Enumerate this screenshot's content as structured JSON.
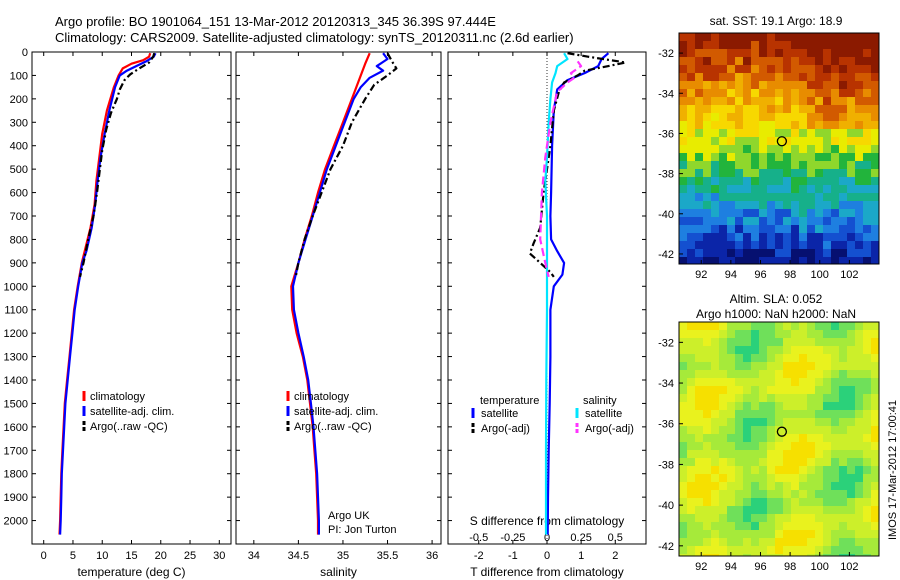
{
  "header": {
    "line1": "Argo profile: BO 1901064_151 13-Mar-2012 20120313_345 36.39S 97.444E",
    "line2": "Climatology: CARS2009. Satellite-adjusted climatology: synTS_20120311.nc (2.6d earlier)"
  },
  "sst_map": {
    "title": "sat. SST: 19.1 Argo: 18.9",
    "xticks": [
      "92",
      "94",
      "96",
      "98",
      "100",
      "102"
    ],
    "yticks": [
      "-32",
      "-34",
      "-36",
      "-38",
      "-40",
      "-42"
    ],
    "xlim": [
      90.5,
      104
    ],
    "ylim": [
      -42.5,
      -31
    ],
    "argo_lon": 97.444,
    "argo_lat": -36.39
  },
  "sla_map": {
    "title1": "Altim. SLA: 0.052",
    "title2": "Argo h1000: NaN h2000: NaN",
    "xticks": [
      "92",
      "94",
      "96",
      "98",
      "100",
      "102"
    ],
    "yticks": [
      "-32",
      "-34",
      "-36",
      "-38",
      "-40",
      "-42"
    ],
    "xlim": [
      90.5,
      104
    ],
    "ylim": [
      -42.5,
      -31
    ],
    "argo_lon": 97.444,
    "argo_lat": -36.39
  },
  "side_label": "IMOS 17-Mar-2012 17:00:41",
  "chart_data": [
    {
      "type": "line",
      "xlabel": "temperature (deg C)",
      "xlim": [
        -2,
        32
      ],
      "ylim": [
        2100,
        0
      ],
      "xticks": [
        "0",
        "5",
        "10",
        "15",
        "20",
        "25",
        "30"
      ],
      "yticks": [
        "0",
        "100",
        "200",
        "300",
        "400",
        "500",
        "600",
        "700",
        "800",
        "900",
        "1000",
        "1100",
        "1200",
        "1300",
        "1400",
        "1500",
        "1600",
        "1700",
        "1800",
        "1900",
        "2000"
      ],
      "legend": [
        "climatology",
        "satellite-adj. clim.",
        "Argo(..raw -QC)"
      ],
      "series": [
        {
          "name": "climatology",
          "color": "#ff0000",
          "dash": "",
          "points": [
            [
              18.2,
              5
            ],
            [
              18,
              20
            ],
            [
              17,
              35
            ],
            [
              15,
              50
            ],
            [
              13.5,
              70
            ],
            [
              12.8,
              100
            ],
            [
              12,
              150
            ],
            [
              10.8,
              250
            ],
            [
              10,
              350
            ],
            [
              9.5,
              450
            ],
            [
              9,
              550
            ],
            [
              8.7,
              650
            ],
            [
              8,
              750
            ],
            [
              7,
              850
            ],
            [
              6.5,
              900
            ],
            [
              5.8,
              1000
            ],
            [
              5.2,
              1100
            ],
            [
              4.8,
              1200
            ],
            [
              4.4,
              1300
            ],
            [
              4,
              1400
            ],
            [
              3.6,
              1500
            ],
            [
              3.4,
              1600
            ],
            [
              3.2,
              1700
            ],
            [
              3,
              1800
            ],
            [
              2.9,
              1900
            ],
            [
              2.8,
              2000
            ],
            [
              2.7,
              2060
            ]
          ]
        },
        {
          "name": "satellite-adj. clim.",
          "color": "#0000ff",
          "dash": "",
          "points": [
            [
              19.1,
              5
            ],
            [
              18.8,
              20
            ],
            [
              17.5,
              40
            ],
            [
              15.8,
              60
            ],
            [
              14.2,
              80
            ],
            [
              13,
              100
            ],
            [
              12.2,
              150
            ],
            [
              11.2,
              250
            ],
            [
              10.4,
              350
            ],
            [
              9.7,
              450
            ],
            [
              9.2,
              550
            ],
            [
              8.8,
              650
            ],
            [
              8.2,
              750
            ],
            [
              7.3,
              850
            ],
            [
              6.6,
              900
            ],
            [
              5.9,
              1000
            ],
            [
              5.3,
              1100
            ],
            [
              4.9,
              1200
            ],
            [
              4.5,
              1300
            ],
            [
              4.1,
              1400
            ],
            [
              3.7,
              1500
            ],
            [
              3.5,
              1600
            ],
            [
              3.3,
              1700
            ],
            [
              3.1,
              1800
            ],
            [
              3,
              1900
            ],
            [
              2.9,
              2000
            ],
            [
              2.8,
              2060
            ]
          ]
        },
        {
          "name": "Argo(..raw -QC)",
          "color": "#000000",
          "dash": "7,3,2,3",
          "points": [
            [
              18.9,
              5
            ],
            [
              18.7,
              20
            ],
            [
              18,
              45
            ],
            [
              16,
              75
            ],
            [
              14.8,
              95
            ],
            [
              13.8,
              120
            ],
            [
              13,
              160
            ],
            [
              12.5,
              200
            ],
            [
              11.5,
              260
            ],
            [
              10.7,
              330
            ],
            [
              10,
              420
            ],
            [
              9.6,
              500
            ],
            [
              9.1,
              600
            ],
            [
              8.5,
              700
            ],
            [
              7.6,
              800
            ],
            [
              6.8,
              900
            ],
            [
              6.2,
              960
            ]
          ]
        }
      ]
    },
    {
      "type": "line",
      "xlabel": "salinity",
      "xlim": [
        33.8,
        36.1
      ],
      "ylim": [
        2100,
        0
      ],
      "xticks": [
        "34",
        "34.5",
        "35",
        "35.5",
        "36"
      ],
      "legend": [
        "climatology",
        "satellite-adj. clim.",
        "Argo(..raw -QC)"
      ],
      "annotation": [
        "Argo UK",
        "PI: Jon Turton"
      ],
      "series": [
        {
          "name": "climatology",
          "color": "#ff0000",
          "dash": "",
          "points": [
            [
              35.3,
              5
            ],
            [
              35.25,
              50
            ],
            [
              35.2,
              100
            ],
            [
              35.1,
              200
            ],
            [
              35.0,
              300
            ],
            [
              34.9,
              400
            ],
            [
              34.8,
              500
            ],
            [
              34.72,
              600
            ],
            [
              34.65,
              700
            ],
            [
              34.57,
              800
            ],
            [
              34.5,
              900
            ],
            [
              34.42,
              1000
            ],
            [
              34.43,
              1100
            ],
            [
              34.48,
              1200
            ],
            [
              34.55,
              1300
            ],
            [
              34.6,
              1400
            ],
            [
              34.63,
              1500
            ],
            [
              34.66,
              1600
            ],
            [
              34.68,
              1700
            ],
            [
              34.7,
              1800
            ],
            [
              34.71,
              1900
            ],
            [
              34.72,
              2000
            ],
            [
              34.72,
              2060
            ]
          ]
        },
        {
          "name": "satellite-adj. clim.",
          "color": "#0000ff",
          "dash": "",
          "points": [
            [
              35.45,
              5
            ],
            [
              35.5,
              30
            ],
            [
              35.38,
              60
            ],
            [
              35.45,
              80
            ],
            [
              35.3,
              110
            ],
            [
              35.2,
              150
            ],
            [
              35.12,
              200
            ],
            [
              35.02,
              300
            ],
            [
              34.92,
              400
            ],
            [
              34.82,
              500
            ],
            [
              34.74,
              600
            ],
            [
              34.66,
              700
            ],
            [
              34.58,
              800
            ],
            [
              34.5,
              900
            ],
            [
              34.44,
              1000
            ],
            [
              34.45,
              1100
            ],
            [
              34.5,
              1200
            ],
            [
              34.56,
              1300
            ],
            [
              34.61,
              1400
            ],
            [
              34.64,
              1500
            ],
            [
              34.67,
              1600
            ],
            [
              34.69,
              1700
            ],
            [
              34.71,
              1800
            ],
            [
              34.72,
              1900
            ],
            [
              34.73,
              2000
            ],
            [
              34.73,
              2060
            ]
          ]
        },
        {
          "name": "Argo(..raw -QC)",
          "color": "#000000",
          "dash": "7,3,2,3",
          "points": [
            [
              35.5,
              5
            ],
            [
              35.55,
              40
            ],
            [
              35.6,
              70
            ],
            [
              35.5,
              100
            ],
            [
              35.35,
              140
            ],
            [
              35.25,
              200
            ],
            [
              35.1,
              300
            ],
            [
              35.0,
              400
            ],
            [
              34.86,
              500
            ],
            [
              34.76,
              600
            ],
            [
              34.66,
              700
            ],
            [
              34.57,
              800
            ],
            [
              34.5,
              900
            ],
            [
              34.47,
              960
            ]
          ]
        }
      ]
    },
    {
      "type": "line",
      "xlabel": "T difference from climatology",
      "xlabel2": "S difference from climatology",
      "xlim": [
        -2.9,
        2.9
      ],
      "ylim": [
        2100,
        0
      ],
      "xticks": [
        "-2",
        "-1",
        "0",
        "1",
        "2"
      ],
      "xticks2": [
        "-0.5",
        "-0.25",
        "0",
        "0.25",
        "0.5"
      ],
      "legend_titles": [
        "temperature",
        "salinity"
      ],
      "legend": [
        "satellite",
        "Argo(-adj)",
        "satellite",
        "Argo(-adj)"
      ],
      "series": [
        {
          "name": "satellite",
          "color": "#0000ff",
          "dash": "",
          "points": [
            [
              1.8,
              5
            ],
            [
              1.6,
              30
            ],
            [
              1.5,
              60
            ],
            [
              1.1,
              90
            ],
            [
              0.6,
              120
            ],
            [
              0.3,
              160
            ],
            [
              0.2,
              250
            ],
            [
              0.15,
              400
            ],
            [
              0.12,
              600
            ],
            [
              0.1,
              700
            ],
            [
              0.12,
              800
            ],
            [
              0.3,
              850
            ],
            [
              0.5,
              900
            ],
            [
              0.45,
              950
            ],
            [
              0.2,
              1000
            ],
            [
              0.1,
              1100
            ],
            [
              0.1,
              1300
            ],
            [
              0.08,
              1500
            ],
            [
              0.05,
              1700
            ],
            [
              0.03,
              1900
            ],
            [
              0.02,
              2060
            ]
          ]
        },
        {
          "name": "Argo(-adj)",
          "color": "#000000",
          "dash": "7,3,2,3",
          "points": [
            [
              0.6,
              5
            ],
            [
              1.2,
              20
            ],
            [
              2.3,
              45
            ],
            [
              1.8,
              60
            ],
            [
              1.1,
              80
            ],
            [
              0.9,
              100
            ],
            [
              0.5,
              130
            ],
            [
              0.35,
              170
            ],
            [
              0.2,
              250
            ],
            [
              0.1,
              400
            ],
            [
              -0.1,
              600
            ],
            [
              -0.2,
              750
            ],
            [
              -0.4,
              820
            ],
            [
              -0.5,
              860
            ],
            [
              -0.2,
              900
            ],
            [
              0.1,
              940
            ],
            [
              0.2,
              960
            ]
          ]
        },
        {
          "name": "satellite",
          "color": "#00e5ff",
          "dash": "",
          "points": [
            [
              0.5,
              5
            ],
            [
              0.6,
              30
            ],
            [
              0.3,
              60
            ],
            [
              0.25,
              90
            ],
            [
              0.15,
              130
            ],
            [
              0.1,
              200
            ],
            [
              0.05,
              300
            ],
            [
              0.0,
              450
            ],
            [
              -0.05,
              550
            ],
            [
              0.0,
              700
            ],
            [
              0.0,
              900
            ],
            [
              0.0,
              1100
            ],
            [
              -0.02,
              1400
            ],
            [
              -0.03,
              1700
            ],
            [
              -0.03,
              2060
            ]
          ]
        },
        {
          "name": "Argo(-adj)",
          "color": "#ff33ff",
          "dash": "8,4",
          "points": [
            [
              0.9,
              40
            ],
            [
              1.0,
              60
            ],
            [
              0.7,
              90
            ],
            [
              0.8,
              110
            ],
            [
              0.6,
              130
            ],
            [
              0.3,
              170
            ],
            [
              0.1,
              300
            ],
            [
              -0.05,
              450
            ],
            [
              -0.15,
              600
            ],
            [
              -0.2,
              800
            ],
            [
              -0.05,
              900
            ],
            [
              0.05,
              960
            ]
          ]
        }
      ]
    }
  ]
}
